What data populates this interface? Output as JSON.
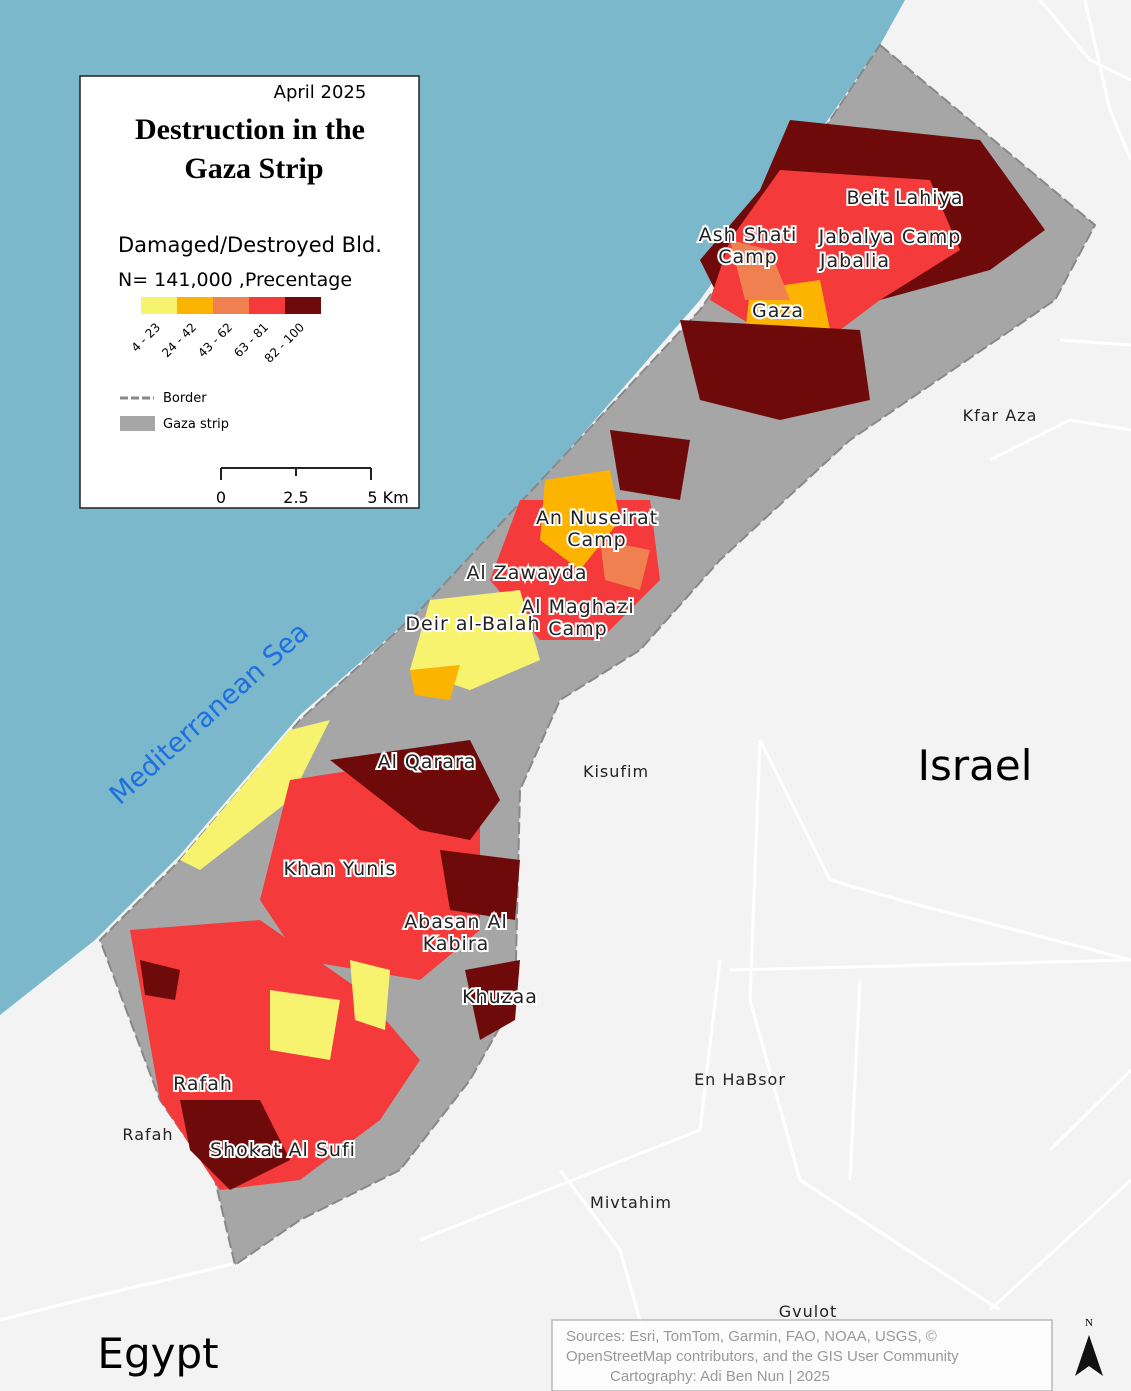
{
  "legend": {
    "date": "April 2025",
    "title_lines": [
      "Destruction in the",
      "Gaza Strip"
    ],
    "subtitle": "Damaged/Destroyed Bld.",
    "note": "N= 141,000 ,Precentage",
    "classes": [
      {
        "label": "4 - 23",
        "color": "#f7f36e"
      },
      {
        "label": "24 - 42",
        "color": "#fcb400"
      },
      {
        "label": "43 - 62",
        "color": "#f08050"
      },
      {
        "label": "63 - 81",
        "color": "#f43a3a"
      },
      {
        "label": "82 - 100",
        "color": "#6e0a0a"
      }
    ],
    "border": "Border",
    "strip": "Gaza strip",
    "scale": [
      "0",
      "2.5",
      "5 Km"
    ]
  },
  "sea": "Mediterranean Sea",
  "countries": [
    "Israel",
    "Egypt"
  ],
  "gaza_places": [
    {
      "lines": [
        "Beit Lahiya"
      ]
    },
    {
      "lines": [
        "Ash Shati",
        "Camp"
      ]
    },
    {
      "lines": [
        "Jabalya Camp"
      ]
    },
    {
      "lines": [
        "Jabalia"
      ]
    },
    {
      "lines": [
        "Gaza"
      ]
    },
    {
      "lines": [
        "An Nuseirat",
        "Camp"
      ]
    },
    {
      "lines": [
        "Al Zawayda"
      ]
    },
    {
      "lines": [
        "Al Maghazi",
        "Camp"
      ]
    },
    {
      "lines": [
        "Deir al-Balah"
      ]
    },
    {
      "lines": [
        "Al Qarara"
      ]
    },
    {
      "lines": [
        "Khan Yunis"
      ]
    },
    {
      "lines": [
        "Abasan Al",
        "Kabira"
      ]
    },
    {
      "lines": [
        "Khuzaa"
      ]
    },
    {
      "lines": [
        "Rafah"
      ]
    },
    {
      "lines": [
        "Shokat Al Sufi"
      ]
    }
  ],
  "other_places": [
    "Kfar Aza",
    "Kisufim",
    "En HaBsor",
    "Rafah",
    "Mivtahim",
    "Gvulot"
  ],
  "sources": [
    "Sources: Esri, TomTom, Garmin, FAO, NOAA, USGS, ©",
    "OpenStreetMap contributors, and the GIS User Community",
    "Cartography: Adi Ben Nun | 2025"
  ],
  "north": "N"
}
